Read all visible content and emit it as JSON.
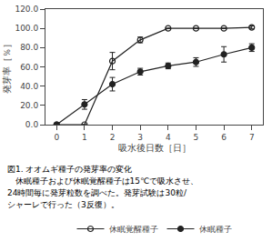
{
  "chart_data": {
    "type": "line",
    "xlabel": "吸水後日数［日］",
    "ylabel": "発芽率［％］",
    "x": [
      0,
      1,
      2,
      3,
      4,
      5,
      6,
      7
    ],
    "series": [
      {
        "name": "休眠覚醒種子",
        "color": "#222222",
        "marker": "circle-open",
        "line_style": "solid",
        "values": [
          0.0,
          0.0,
          66.0,
          88.0,
          100.0,
          100.0,
          100.0,
          101.0
        ],
        "error": [
          0.0,
          0.0,
          9.0,
          3.0,
          0.0,
          0.0,
          0.0,
          1.5
        ]
      },
      {
        "name": "休眠種子",
        "color": "#222222",
        "marker": "circle",
        "line_style": "solid",
        "values": [
          0.0,
          21.0,
          42.0,
          55.0,
          61.0,
          65.0,
          73.0,
          80.0
        ],
        "error": [
          0.0,
          5.0,
          7.0,
          3.5,
          3.0,
          4.5,
          8.0,
          4.0
        ]
      }
    ],
    "xlim": [
      -0.4,
      7.4
    ],
    "xticks": [
      0,
      1,
      2,
      3,
      4,
      5,
      6,
      7
    ],
    "ylim": [
      0.0,
      120.0
    ],
    "yticks": [
      {
        "value": 0.0,
        "label": "0.0"
      },
      {
        "value": 20.0,
        "label": "20.0"
      },
      {
        "value": 40.0,
        "label": "40.0"
      },
      {
        "value": 60.0,
        "label": "60.0"
      },
      {
        "value": 80.0,
        "label": "80.0"
      },
      {
        "value": 100.0,
        "label": "100.0"
      },
      {
        "value": 120.0,
        "label": "120.0"
      }
    ],
    "annotations": [
      "図1. オオムギ種子の発芽率の変化",
      "   休眠種子および休眠覚醒種子は15℃で吸水させ、",
      "24時間毎に発芽粒数を調べた。発芽試験は30粒/",
      "シャーレで行った（3反復）。"
    ],
    "grid": false,
    "legend": "bottom"
  }
}
